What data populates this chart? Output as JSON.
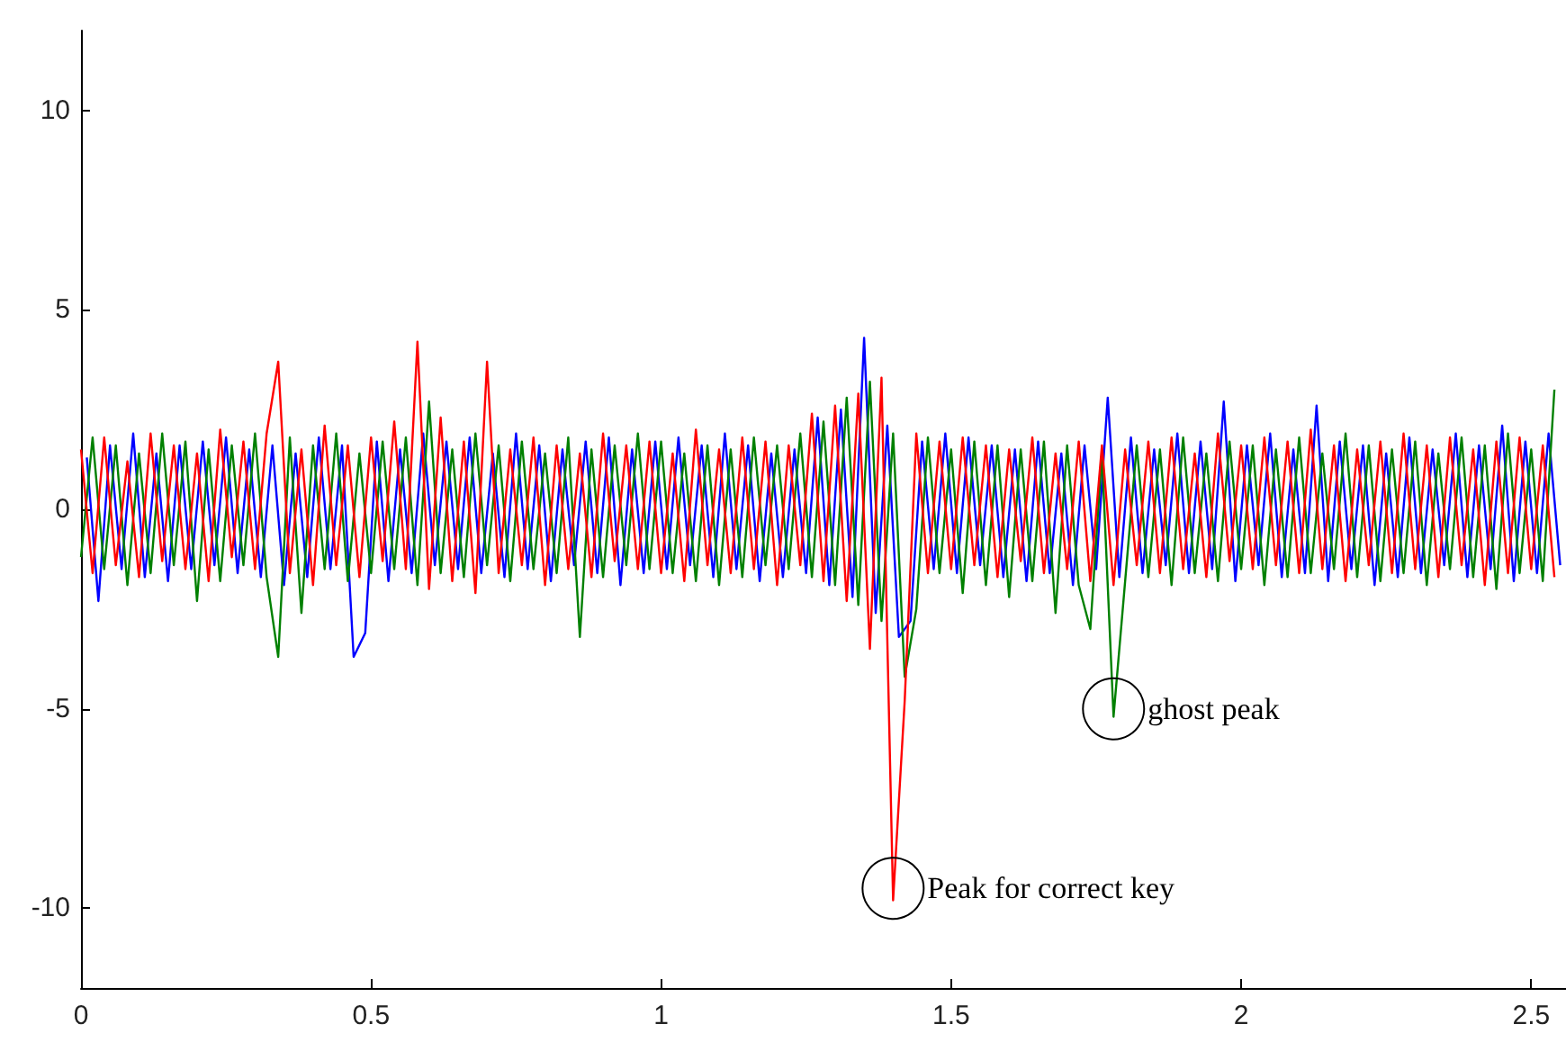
{
  "chart_data": {
    "type": "line",
    "x": [
      0,
      0.02,
      0.04,
      0.06,
      0.08,
      0.1,
      0.12,
      0.14,
      0.16,
      0.18,
      0.2,
      0.22,
      0.24,
      0.26,
      0.28,
      0.3,
      0.32,
      0.34,
      0.36,
      0.38,
      0.4,
      0.42,
      0.44,
      0.46,
      0.48,
      0.5,
      0.52,
      0.54,
      0.56,
      0.58,
      0.6,
      0.62,
      0.64,
      0.66,
      0.68,
      0.7,
      0.72,
      0.74,
      0.76,
      0.78,
      0.8,
      0.82,
      0.84,
      0.86,
      0.88,
      0.9,
      0.92,
      0.94,
      0.96,
      0.98,
      1,
      1.02,
      1.04,
      1.06,
      1.08,
      1.1,
      1.12,
      1.14,
      1.16,
      1.18,
      1.2,
      1.22,
      1.24,
      1.26,
      1.28,
      1.3,
      1.32,
      1.34,
      1.36,
      1.38,
      1.4,
      1.42,
      1.44,
      1.46,
      1.48,
      1.5,
      1.52,
      1.54,
      1.56,
      1.58,
      1.6,
      1.62,
      1.64,
      1.66,
      1.68,
      1.7,
      1.72,
      1.74,
      1.76,
      1.78,
      1.8,
      1.82,
      1.84,
      1.86,
      1.88,
      1.9,
      1.92,
      1.94,
      1.96,
      1.98,
      2,
      2.02,
      2.04,
      2.06,
      2.08,
      2.1,
      2.12,
      2.14,
      2.16,
      2.18,
      2.2,
      2.22,
      2.24,
      2.26,
      2.28,
      2.3,
      2.32,
      2.34,
      2.36,
      2.38,
      2.4,
      2.42,
      2.44,
      2.46,
      2.48,
      2.5,
      2.52,
      2.54
    ],
    "series": [
      {
        "color": "#0000ff",
        "x": [
          0.01,
          0.03,
          0.05,
          0.07,
          0.09,
          0.11,
          0.13,
          0.15,
          0.17,
          0.19,
          0.21,
          0.23,
          0.25,
          0.27,
          0.29,
          0.31,
          0.33,
          0.35,
          0.37,
          0.39,
          0.41,
          0.43,
          0.45,
          0.47,
          0.49,
          0.51,
          0.53,
          0.55,
          0.57,
          0.59,
          0.61,
          0.63,
          0.65,
          0.67,
          0.69,
          0.71,
          0.73,
          0.75,
          0.77,
          0.79,
          0.81,
          0.83,
          0.85,
          0.87,
          0.89,
          0.91,
          0.93,
          0.95,
          0.97,
          0.99,
          1.01,
          1.03,
          1.05,
          1.07,
          1.09,
          1.11,
          1.13,
          1.15,
          1.17,
          1.19,
          1.21,
          1.23,
          1.25,
          1.27,
          1.29,
          1.31,
          1.33,
          1.35,
          1.37,
          1.39,
          1.41,
          1.43,
          1.45,
          1.47,
          1.49,
          1.51,
          1.53,
          1.55,
          1.57,
          1.59,
          1.61,
          1.63,
          1.65,
          1.67,
          1.69,
          1.71,
          1.73,
          1.75,
          1.77,
          1.79,
          1.81,
          1.83,
          1.85,
          1.87,
          1.89,
          1.91,
          1.93,
          1.95,
          1.97,
          1.99,
          2.01,
          2.03,
          2.05,
          2.07,
          2.09,
          2.11,
          2.13,
          2.15,
          2.17,
          2.19,
          2.21,
          2.23,
          2.25,
          2.27,
          2.29,
          2.31,
          2.33,
          2.35,
          2.37,
          2.39,
          2.41,
          2.43,
          2.45,
          2.47,
          2.49,
          2.51,
          2.53,
          2.55
        ],
        "values": [
          1.3,
          -2.3,
          1.6,
          -1.5,
          1.9,
          -1.7,
          1.4,
          -1.8,
          1.6,
          -1.5,
          1.7,
          -1.4,
          1.8,
          -1.6,
          1.5,
          -1.7,
          1.6,
          -1.9,
          1.4,
          -1.7,
          1.8,
          -1.5,
          1.6,
          -3.7,
          -3.1,
          1.7,
          -1.8,
          1.5,
          -1.6,
          1.9,
          -1.4,
          1.7,
          -1.5,
          1.8,
          -1.6,
          1.4,
          -1.7,
          1.9,
          -1.5,
          1.6,
          -1.8,
          1.5,
          -1.4,
          1.7,
          -1.6,
          1.8,
          -1.9,
          1.5,
          -1.6,
          1.7,
          -1.5,
          1.8,
          -1.4,
          1.6,
          -1.7,
          1.9,
          -1.5,
          1.6,
          -1.8,
          1.4,
          -1.7,
          1.5,
          -1.6,
          2.3,
          -1.9,
          2.5,
          -2.2,
          4.3,
          -2.6,
          2.1,
          -3.2,
          -2.8,
          1.7,
          -1.5,
          1.9,
          -1.6,
          1.8,
          -1.4,
          1.6,
          -1.7,
          1.5,
          -1.8,
          1.7,
          -1.6,
          1.4,
          -1.9,
          1.6,
          -1.5,
          2.8,
          -1.7,
          1.8,
          -1.6,
          1.5,
          -1.4,
          1.9,
          -1.6,
          1.7,
          -1.5,
          2.7,
          -1.8,
          1.6,
          -1.4,
          1.9,
          -1.7,
          1.5,
          -1.6,
          2.6,
          -1.8,
          1.7,
          -1.5,
          1.6,
          -1.9,
          1.4,
          -1.7,
          1.8,
          -1.6,
          1.5,
          -1.4,
          1.9,
          -1.7,
          1.6,
          -1.5,
          2.1,
          -1.8,
          1.7,
          -1.6,
          1.9,
          -1.4
        ]
      },
      {
        "color": "#008000",
        "values": [
          -1.2,
          1.8,
          -1.5,
          1.6,
          -1.9,
          1.4,
          -1.6,
          1.9,
          -1.4,
          1.7,
          -2.3,
          1.5,
          -1.8,
          1.6,
          -1.4,
          1.9,
          -1.7,
          -3.7,
          1.8,
          -2.6,
          1.6,
          -1.5,
          1.9,
          -1.8,
          1.4,
          -1.6,
          1.7,
          -1.5,
          1.8,
          -1.9,
          2.7,
          -1.6,
          1.5,
          -1.7,
          1.9,
          -1.4,
          1.6,
          -1.8,
          1.7,
          -1.5,
          1.4,
          -1.6,
          1.8,
          -3.2,
          1.5,
          -1.7,
          1.6,
          -1.4,
          1.9,
          -1.5,
          1.7,
          -1.6,
          1.4,
          -1.8,
          1.6,
          -1.9,
          1.5,
          -1.7,
          1.8,
          -1.4,
          1.6,
          -1.5,
          1.9,
          -1.7,
          2.2,
          -1.9,
          2.8,
          -2.4,
          3.2,
          -2.8,
          1.9,
          -4.2,
          -2.5,
          1.8,
          -1.6,
          1.5,
          -2.1,
          1.7,
          -1.9,
          1.6,
          -2.2,
          1.5,
          -1.8,
          1.7,
          -2.6,
          1.6,
          -1.9,
          -3.0,
          1.4,
          -5.2,
          -1.8,
          1.6,
          -1.7,
          1.5,
          -1.9,
          1.8,
          -1.6,
          1.4,
          -1.8,
          1.7,
          -1.5,
          1.6,
          -1.9,
          1.5,
          -1.7,
          1.8,
          -1.6,
          1.4,
          -1.5,
          1.9,
          -1.7,
          1.6,
          -1.8,
          1.5,
          -1.6,
          1.7,
          -1.9,
          1.4,
          -1.5,
          1.8,
          -1.7,
          1.6,
          -2.0,
          1.9,
          -1.6,
          1.5,
          -1.8,
          3.0
        ]
      },
      {
        "color": "#ff0000",
        "values": [
          1.5,
          -1.6,
          1.8,
          -1.4,
          1.2,
          -1.7,
          1.9,
          -1.3,
          1.6,
          -1.5,
          1.4,
          -1.8,
          2.0,
          -1.2,
          1.7,
          -1.5,
          1.9,
          3.7,
          -1.6,
          1.5,
          -1.9,
          2.1,
          -1.4,
          1.6,
          -1.7,
          1.8,
          -1.3,
          2.2,
          -1.5,
          4.2,
          -2.0,
          2.3,
          -1.8,
          1.7,
          -2.1,
          3.7,
          -1.6,
          1.5,
          -1.4,
          1.8,
          -1.9,
          1.6,
          -1.5,
          1.4,
          -1.7,
          1.9,
          -1.3,
          1.6,
          -1.5,
          1.7,
          -1.6,
          1.4,
          -1.8,
          2.0,
          -1.4,
          1.5,
          -1.6,
          1.8,
          -1.5,
          1.7,
          -1.9,
          1.6,
          -1.4,
          2.4,
          -1.8,
          2.6,
          -2.3,
          2.9,
          -3.5,
          3.3,
          -9.8,
          -4.8,
          1.9,
          -1.6,
          1.7,
          -1.5,
          1.8,
          -1.4,
          1.6,
          -1.7,
          1.5,
          -1.3,
          1.8,
          -1.6,
          1.4,
          -1.5,
          1.7,
          -1.8,
          1.6,
          -1.9,
          1.5,
          -1.4,
          1.7,
          -1.6,
          1.8,
          -1.5,
          1.4,
          -1.7,
          1.9,
          -1.3,
          1.6,
          -1.5,
          1.8,
          -1.4,
          1.7,
          -1.6,
          2.0,
          -1.5,
          1.6,
          -1.8,
          1.5,
          -1.4,
          1.7,
          -1.6,
          1.9,
          -1.5,
          1.6,
          -1.7,
          1.8,
          -1.4,
          1.5,
          -1.9,
          1.7,
          -1.6,
          1.8,
          -1.5,
          1.6,
          -1.7
        ]
      }
    ],
    "xlim": [
      0,
      2.56
    ],
    "xticks": [
      0,
      0.5,
      1,
      1.5,
      2,
      2.5
    ],
    "ylim": [
      -12,
      12
    ],
    "yticks": [
      -10,
      -5,
      0,
      5,
      10
    ],
    "annotations": [
      {
        "text": "ghost peak",
        "x": 1.78,
        "y": -5
      },
      {
        "text": "Peak for correct key",
        "x": 1.4,
        "y": -9.5
      }
    ]
  }
}
